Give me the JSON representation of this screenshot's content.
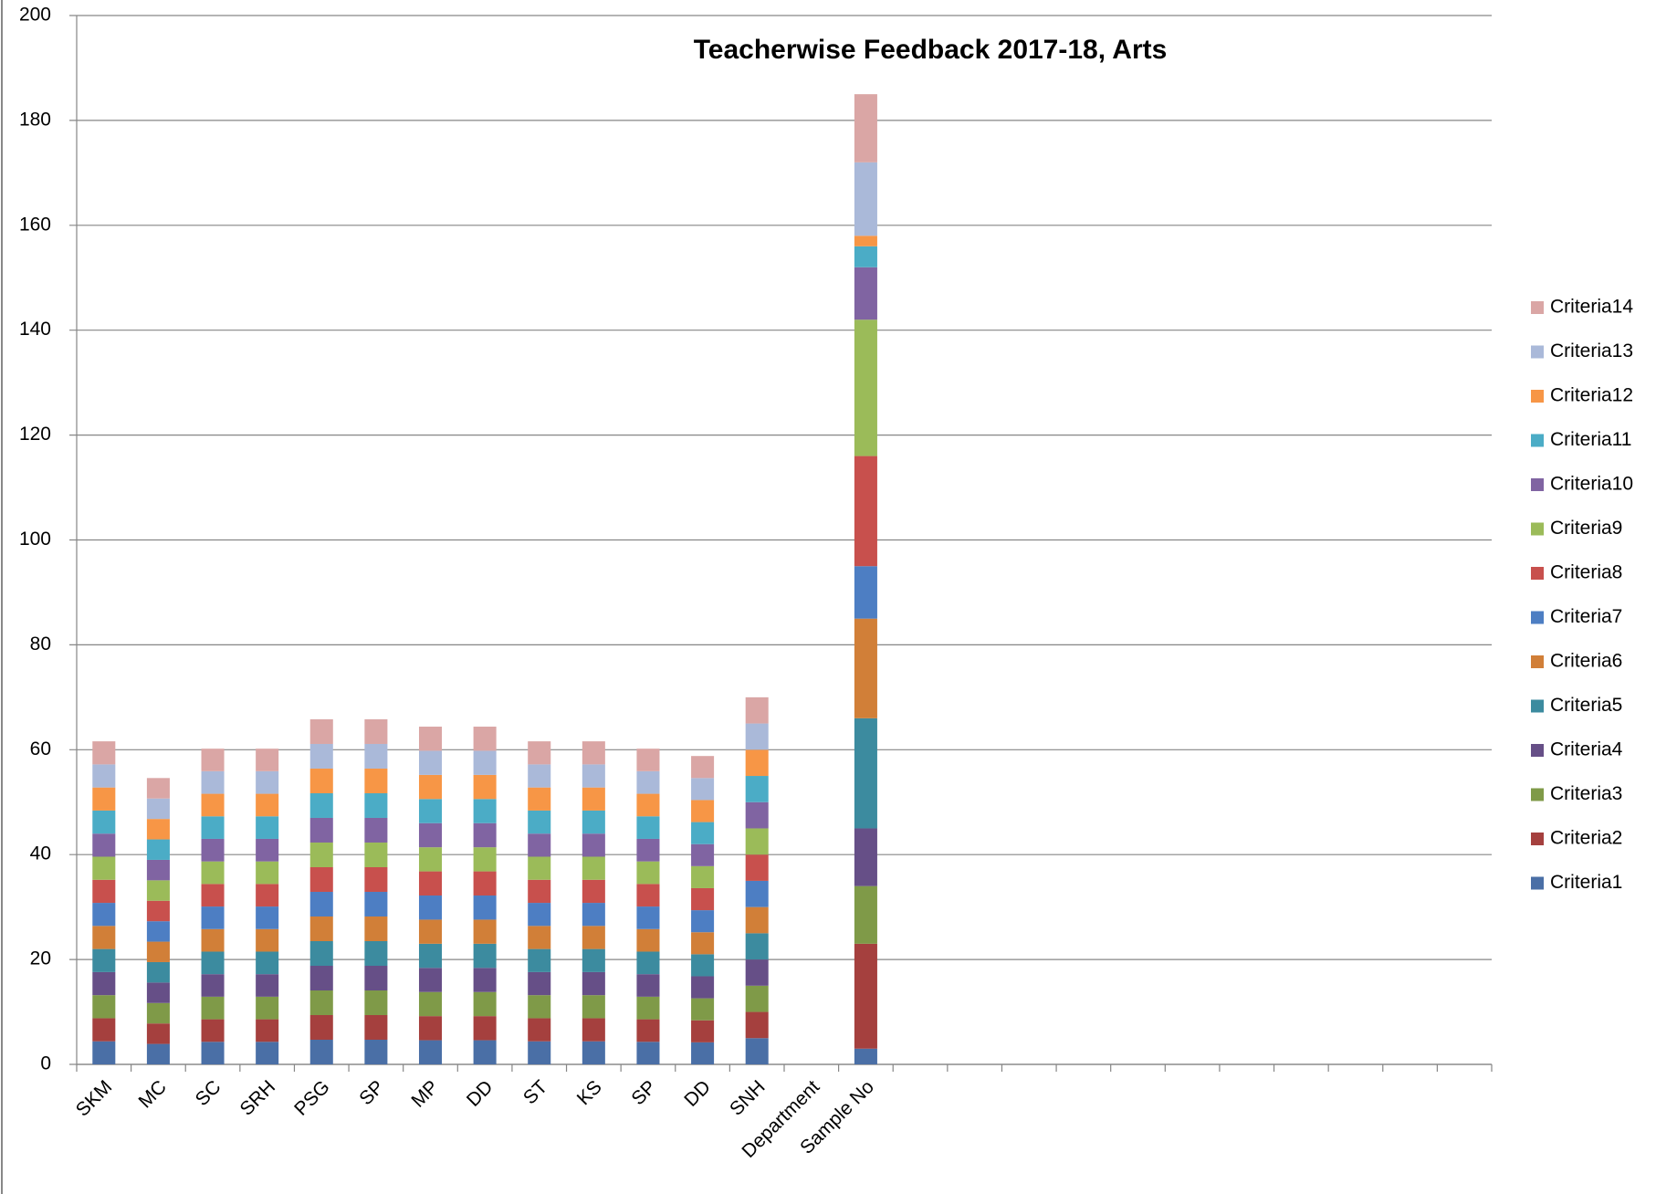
{
  "chart_data": {
    "type": "stacked_bar",
    "title": "Teacherwise Feedback 2017-18, Arts",
    "categories": [
      "SKM",
      "MC",
      "SC",
      "SRH",
      "PSG",
      "SP",
      "MP",
      "DD",
      "ST",
      "KS",
      "SP",
      "DD",
      "SNH",
      "Department",
      "Sample No",
      null,
      null,
      null,
      null,
      null,
      null,
      null,
      null,
      null,
      null,
      null
    ],
    "ylim": [
      0,
      200
    ],
    "yticks": [
      0,
      20,
      40,
      60,
      80,
      100,
      120,
      140,
      160,
      180,
      200
    ],
    "grid": true,
    "legend": "right",
    "series": [
      {
        "name": "Criteria1",
        "color": "#4a6fa6",
        "values": [
          4.4,
          3.9,
          4.3,
          4.3,
          4.7,
          4.7,
          4.6,
          4.6,
          4.4,
          4.4,
          4.3,
          4.2,
          5,
          null,
          3,
          null,
          null,
          null,
          null,
          null,
          null,
          null,
          null,
          null,
          null,
          null
        ]
      },
      {
        "name": "Criteria2",
        "color": "#a5403e",
        "values": [
          4.4,
          3.9,
          4.3,
          4.3,
          4.7,
          4.7,
          4.6,
          4.6,
          4.4,
          4.4,
          4.3,
          4.2,
          5,
          null,
          20,
          null,
          null,
          null,
          null,
          null,
          null,
          null,
          null,
          null,
          null,
          null
        ]
      },
      {
        "name": "Criteria3",
        "color": "#7f9a48",
        "values": [
          4.4,
          3.9,
          4.3,
          4.3,
          4.7,
          4.7,
          4.6,
          4.6,
          4.4,
          4.4,
          4.3,
          4.2,
          5,
          null,
          11,
          null,
          null,
          null,
          null,
          null,
          null,
          null,
          null,
          null,
          null,
          null
        ]
      },
      {
        "name": "Criteria4",
        "color": "#664f87",
        "values": [
          4.4,
          3.9,
          4.3,
          4.3,
          4.7,
          4.7,
          4.6,
          4.6,
          4.4,
          4.4,
          4.3,
          4.2,
          5,
          null,
          11,
          null,
          null,
          null,
          null,
          null,
          null,
          null,
          null,
          null,
          null,
          null
        ]
      },
      {
        "name": "Criteria5",
        "color": "#3c8b9f",
        "values": [
          4.4,
          3.9,
          4.3,
          4.3,
          4.7,
          4.7,
          4.6,
          4.6,
          4.4,
          4.4,
          4.3,
          4.2,
          5,
          null,
          21,
          null,
          null,
          null,
          null,
          null,
          null,
          null,
          null,
          null,
          null,
          null
        ]
      },
      {
        "name": "Criteria6",
        "color": "#d17f38",
        "values": [
          4.4,
          3.9,
          4.3,
          4.3,
          4.7,
          4.7,
          4.6,
          4.6,
          4.4,
          4.4,
          4.3,
          4.2,
          5,
          null,
          19,
          null,
          null,
          null,
          null,
          null,
          null,
          null,
          null,
          null,
          null,
          null
        ]
      },
      {
        "name": "Criteria7",
        "color": "#4d7ec3",
        "values": [
          4.4,
          3.9,
          4.3,
          4.3,
          4.7,
          4.7,
          4.6,
          4.6,
          4.4,
          4.4,
          4.3,
          4.2,
          5,
          null,
          10,
          null,
          null,
          null,
          null,
          null,
          null,
          null,
          null,
          null,
          null,
          null
        ]
      },
      {
        "name": "Criteria8",
        "color": "#c8504d",
        "values": [
          4.4,
          3.9,
          4.3,
          4.3,
          4.7,
          4.7,
          4.6,
          4.6,
          4.4,
          4.4,
          4.3,
          4.2,
          5,
          null,
          21,
          null,
          null,
          null,
          null,
          null,
          null,
          null,
          null,
          null,
          null,
          null
        ]
      },
      {
        "name": "Criteria9",
        "color": "#9bbb59",
        "values": [
          4.4,
          3.9,
          4.3,
          4.3,
          4.7,
          4.7,
          4.6,
          4.6,
          4.4,
          4.4,
          4.3,
          4.2,
          5,
          null,
          26,
          null,
          null,
          null,
          null,
          null,
          null,
          null,
          null,
          null,
          null,
          null
        ]
      },
      {
        "name": "Criteria10",
        "color": "#8064a2",
        "values": [
          4.4,
          3.9,
          4.3,
          4.3,
          4.7,
          4.7,
          4.6,
          4.6,
          4.4,
          4.4,
          4.3,
          4.2,
          5,
          null,
          10,
          null,
          null,
          null,
          null,
          null,
          null,
          null,
          null,
          null,
          null,
          null
        ]
      },
      {
        "name": "Criteria11",
        "color": "#4bacc6",
        "values": [
          4.4,
          3.9,
          4.3,
          4.3,
          4.7,
          4.7,
          4.6,
          4.6,
          4.4,
          4.4,
          4.3,
          4.2,
          5,
          null,
          4,
          null,
          null,
          null,
          null,
          null,
          null,
          null,
          null,
          null,
          null,
          null
        ]
      },
      {
        "name": "Criteria12",
        "color": "#f79646",
        "values": [
          4.4,
          3.9,
          4.3,
          4.3,
          4.7,
          4.7,
          4.6,
          4.6,
          4.4,
          4.4,
          4.3,
          4.2,
          5,
          null,
          2,
          null,
          null,
          null,
          null,
          null,
          null,
          null,
          null,
          null,
          null,
          null
        ]
      },
      {
        "name": "Criteria13",
        "color": "#aab9d9",
        "values": [
          4.4,
          3.9,
          4.3,
          4.3,
          4.7,
          4.7,
          4.6,
          4.6,
          4.4,
          4.4,
          4.3,
          4.2,
          5,
          null,
          14,
          null,
          null,
          null,
          null,
          null,
          null,
          null,
          null,
          null,
          null,
          null
        ]
      },
      {
        "name": "Criteria14",
        "color": "#daa6a5",
        "values": [
          4.4,
          3.9,
          4.3,
          4.3,
          4.7,
          4.7,
          4.6,
          4.6,
          4.4,
          4.4,
          4.3,
          4.2,
          5,
          null,
          13,
          null,
          null,
          null,
          null,
          null,
          null,
          null,
          null,
          null,
          null,
          null
        ]
      }
    ]
  }
}
